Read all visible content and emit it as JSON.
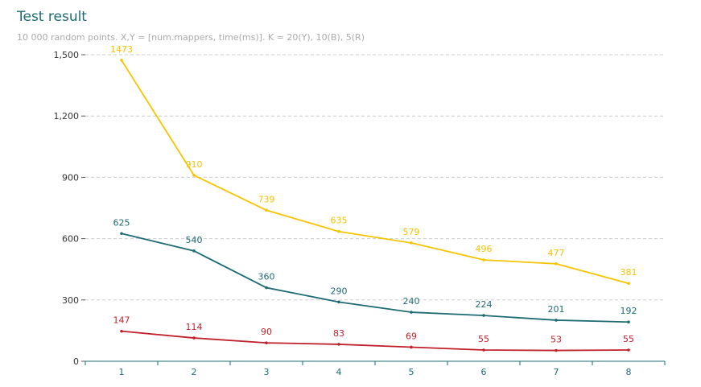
{
  "chart_data": {
    "type": "line",
    "title": "Test result",
    "subtitle": "10 000 random points. X,Y = [num.mappers, time(ms)]. K = 20(Y), 10(B), 5(R)",
    "xlabel": "",
    "ylabel": "",
    "categories": [
      "1",
      "2",
      "3",
      "4",
      "5",
      "6",
      "7",
      "8"
    ],
    "y_ticks": [
      "0",
      "300",
      "600",
      "900",
      "1,200",
      "1,500"
    ],
    "ylim": [
      0,
      1500
    ],
    "grid": true,
    "legend": "none",
    "series": [
      {
        "color": "#f5c400",
        "values": [
          1473,
          910,
          739,
          635,
          579,
          496,
          477,
          381
        ]
      },
      {
        "color": "#1e6b73",
        "values": [
          625,
          540,
          360,
          290,
          240,
          224,
          201,
          192
        ]
      },
      {
        "color": "#c0202a",
        "values": [
          147,
          114,
          90,
          83,
          69,
          55,
          53,
          55
        ]
      }
    ]
  }
}
